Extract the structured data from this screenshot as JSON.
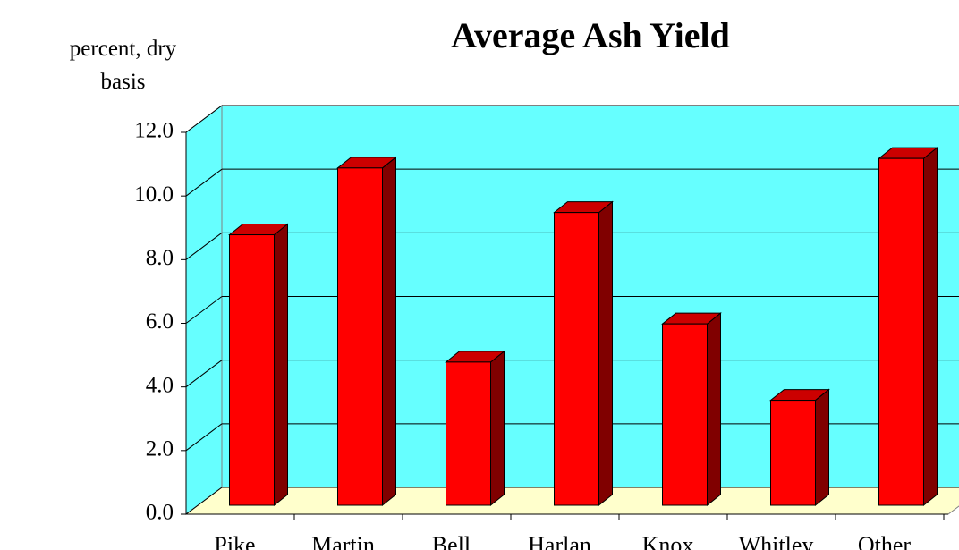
{
  "chart_data": {
    "type": "bar3d",
    "title": "Average Ash Yield",
    "y_label": "percent, dry basis",
    "categories": [
      "Pike",
      "Martin",
      "Bell",
      "Harlan",
      "Knox",
      "Whitley",
      "Other"
    ],
    "values": [
      8.5,
      10.6,
      4.5,
      9.2,
      5.7,
      3.3,
      10.9
    ],
    "color": "#ff0000",
    "ylim": [
      0,
      12
    ],
    "yticks": [
      {
        "value": 0,
        "label": "0.0"
      },
      {
        "value": 2,
        "label": "2.0"
      },
      {
        "value": 4,
        "label": "4.0"
      },
      {
        "value": 6,
        "label": "6.0"
      },
      {
        "value": 8,
        "label": "8.0"
      },
      {
        "value": 10,
        "label": "10.0"
      },
      {
        "value": 12,
        "label": "12.0"
      }
    ],
    "grid": true
  }
}
